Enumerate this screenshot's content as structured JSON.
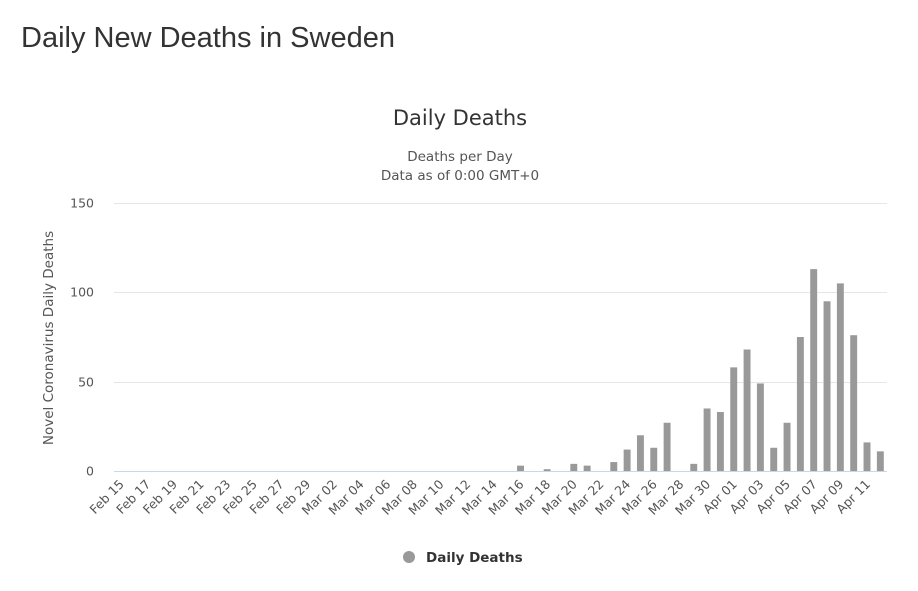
{
  "page": {
    "title": "Daily New Deaths in Sweden"
  },
  "chart_data": {
    "type": "bar",
    "title": "Daily Deaths",
    "subtitle": [
      "Deaths per Day",
      "Data as of 0:00 GMT+0"
    ],
    "ylabel": "Novel Coronavirus Daily Deaths",
    "xlabel": "",
    "ylim": [
      0,
      150
    ],
    "yticks": [
      0,
      50,
      100,
      150
    ],
    "grid": true,
    "legend_position": "bottom-center",
    "bar_color": "#999999",
    "categories": [
      "Feb 15",
      "Feb 16",
      "Feb 17",
      "Feb 18",
      "Feb 19",
      "Feb 20",
      "Feb 21",
      "Feb 22",
      "Feb 23",
      "Feb 24",
      "Feb 25",
      "Feb 26",
      "Feb 27",
      "Feb 28",
      "Feb 29",
      "Mar 01",
      "Mar 02",
      "Mar 03",
      "Mar 04",
      "Mar 05",
      "Mar 06",
      "Mar 07",
      "Mar 08",
      "Mar 09",
      "Mar 10",
      "Mar 11",
      "Mar 12",
      "Mar 13",
      "Mar 14",
      "Mar 15",
      "Mar 16",
      "Mar 17",
      "Mar 18",
      "Mar 19",
      "Mar 20",
      "Mar 21",
      "Mar 22",
      "Mar 23",
      "Mar 24",
      "Mar 25",
      "Mar 26",
      "Mar 27",
      "Mar 28",
      "Mar 29",
      "Mar 30",
      "Mar 31",
      "Apr 01",
      "Apr 02",
      "Apr 03",
      "Apr 04",
      "Apr 05",
      "Apr 06",
      "Apr 07",
      "Apr 08",
      "Apr 09",
      "Apr 10",
      "Apr 11",
      "Apr 12"
    ],
    "tick_labels": [
      "Feb 15",
      "Feb 17",
      "Feb 19",
      "Feb 21",
      "Feb 23",
      "Feb 25",
      "Feb 27",
      "Feb 29",
      "Mar 02",
      "Mar 04",
      "Mar 06",
      "Mar 08",
      "Mar 10",
      "Mar 12",
      "Mar 14",
      "Mar 16",
      "Mar 18",
      "Mar 20",
      "Mar 22",
      "Mar 24",
      "Mar 26",
      "Mar 28",
      "Mar 30",
      "Apr 01",
      "Apr 03",
      "Apr 05",
      "Apr 07",
      "Apr 09",
      "Apr 11"
    ],
    "series": [
      {
        "name": "Daily Deaths",
        "values": [
          0,
          0,
          0,
          0,
          0,
          0,
          0,
          0,
          0,
          0,
          0,
          0,
          0,
          0,
          0,
          0,
          0,
          0,
          0,
          0,
          0,
          0,
          0,
          0,
          0,
          0,
          0,
          0,
          0,
          0,
          3,
          0,
          1,
          0,
          4,
          3,
          0,
          5,
          12,
          20,
          13,
          27,
          0,
          4,
          35,
          33,
          58,
          68,
          49,
          13,
          27,
          75,
          113,
          95,
          105,
          76,
          16,
          11
        ]
      }
    ]
  }
}
